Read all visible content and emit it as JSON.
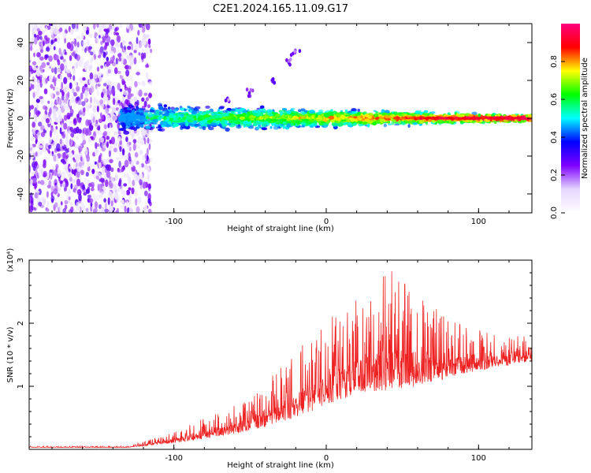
{
  "title": "C2E1.2024.165.11.09.G17",
  "colors": {
    "snr_line": "#ee2222",
    "axis": "#000000"
  },
  "chart_data": [
    {
      "type": "heatmap",
      "name": "spectrogram",
      "xlabel": "Height of straight line (km)",
      "ylabel": "Frequency (Hz)",
      "xlim": [
        -195,
        135
      ],
      "ylim": [
        -50,
        50
      ],
      "xticks": [
        -100,
        0,
        100
      ],
      "yticks": [
        -40,
        -20,
        0,
        20,
        40
      ],
      "colorbar": {
        "label": "Normalized spectral amplitude",
        "range": [
          0,
          1
        ],
        "ticks": [
          "0.0",
          "0.2",
          "0.4",
          "0.6",
          "0.8"
        ],
        "colormap": [
          "#ffffff",
          "#e4d6ff",
          "#7f00ff",
          "#0000ff",
          "#00ffff",
          "#00ff00",
          "#ffff00",
          "#ff0000",
          "#ff0080"
        ]
      },
      "features": {
        "noise_region_x": [
          -195,
          -125
        ],
        "carrier_line_hz": 0,
        "carrier_extent_x": [
          -135,
          135
        ],
        "side_trace": [
          [
            -65,
            10
          ],
          [
            -50,
            14
          ],
          [
            -35,
            20
          ],
          [
            -25,
            30
          ],
          [
            -20,
            35
          ]
        ]
      }
    },
    {
      "type": "line",
      "name": "snr",
      "xlabel": "Height of straight line (km)",
      "ylabel": "SNR (10 * v/v)",
      "multiplier_label": "(x10⁴)",
      "xlim": [
        -195,
        135
      ],
      "ylim": [
        0,
        3
      ],
      "xticks": [
        -100,
        0,
        100
      ],
      "yticks": [
        1,
        2,
        3
      ],
      "envelope": [
        [
          -195,
          0.05
        ],
        [
          -130,
          0.05
        ],
        [
          -110,
          0.2
        ],
        [
          -90,
          0.4
        ],
        [
          -70,
          0.6
        ],
        [
          -50,
          0.8
        ],
        [
          -30,
          1.3
        ],
        [
          -10,
          1.8
        ],
        [
          10,
          2.3
        ],
        [
          30,
          2.6
        ],
        [
          40,
          2.9
        ],
        [
          60,
          2.5
        ],
        [
          80,
          2.1
        ],
        [
          100,
          1.9
        ],
        [
          120,
          1.8
        ],
        [
          135,
          1.8
        ]
      ],
      "baseline": [
        [
          -195,
          0.03
        ],
        [
          -130,
          0.03
        ],
        [
          -100,
          0.1
        ],
        [
          -70,
          0.2
        ],
        [
          -40,
          0.35
        ],
        [
          -10,
          0.6
        ],
        [
          10,
          0.8
        ],
        [
          30,
          0.9
        ],
        [
          60,
          1.0
        ],
        [
          90,
          1.2
        ],
        [
          135,
          1.4
        ]
      ]
    }
  ]
}
